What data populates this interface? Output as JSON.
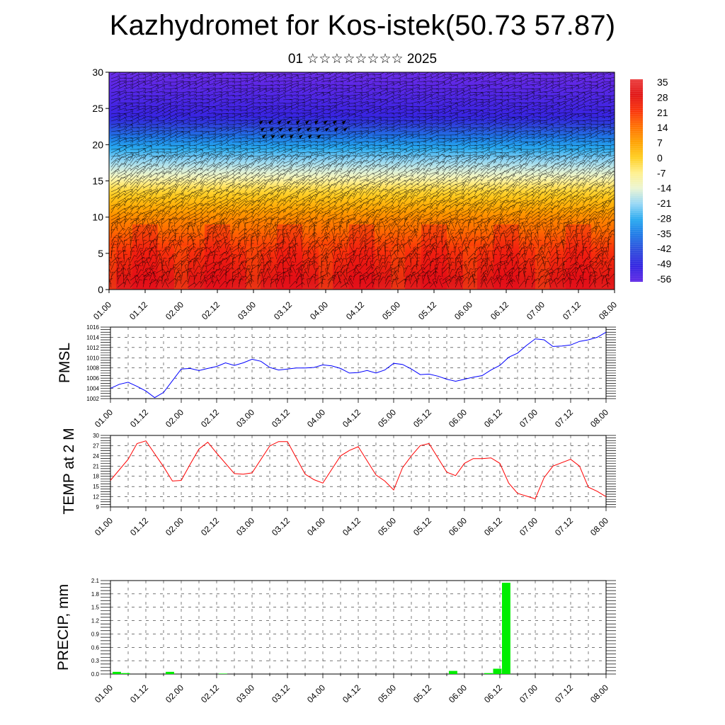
{
  "title": "Kazhydromet for Kos-istek(50.73 57.87)",
  "subtitle": "01 ☆☆☆☆☆☆☆☆ 2025",
  "time_labels": [
    "01.00",
    "01.12",
    "02.00",
    "02.12",
    "03.00",
    "03.12",
    "04.00",
    "04.12",
    "05.00",
    "05.12",
    "06.00",
    "06.12",
    "07.00",
    "07.12",
    "08.00"
  ],
  "chart_data": [
    {
      "id": "upper-air",
      "type": "heatmap",
      "title": "Kazhydromet for Kos-istek(50.73 57.87)",
      "subtitle": "01 ☆☆☆☆☆☆☆☆ 2025",
      "ylim": [
        0,
        30
      ],
      "y_ticks": [
        0,
        5,
        10,
        15,
        20,
        25,
        30
      ],
      "x_ticks": [
        "01.00",
        "01.12",
        "02.00",
        "02.12",
        "03.00",
        "03.12",
        "04.00",
        "04.12",
        "05.00",
        "05.12",
        "06.00",
        "06.12",
        "07.00",
        "07.12",
        "08.00"
      ],
      "temperature_profile": {
        "levels": [
          0,
          5,
          10,
          14,
          16,
          20,
          24,
          30
        ],
        "values": [
          30,
          22,
          10,
          -3,
          -14,
          -30,
          -50,
          -58
        ]
      },
      "colorbar": {
        "labels": [
          "35",
          "28",
          "21",
          "14",
          "7",
          "0",
          "-7",
          "-14",
          "-21",
          "-28",
          "-35",
          "-42",
          "-49",
          "-56"
        ],
        "colors": [
          "#f4a6a6",
          "#e11d2a",
          "#ff3d00",
          "#ff6a00",
          "#ff9c00",
          "#ffc400",
          "#ffe55a",
          "#fff3b0",
          "#bfe7f7",
          "#38b6f2",
          "#1f7fe8",
          "#2b43dd",
          "#2f1fe0",
          "#8a35e6"
        ]
      },
      "wind_barbs": "dense"
    },
    {
      "id": "pmsl",
      "type": "line",
      "ylabel": "PMSL",
      "ylim": [
        1002,
        1016
      ],
      "y_ticks": [
        "1002",
        "1004",
        "1006",
        "1008",
        "1010",
        "1012",
        "1014",
        "1016"
      ],
      "x_ticks": [
        "01.00",
        "01.12",
        "02.00",
        "02.12",
        "03.00",
        "03.12",
        "04.00",
        "04.12",
        "05.00",
        "05.12",
        "06.00",
        "06.12",
        "07.00",
        "07.12",
        "08.00"
      ],
      "x": [
        0,
        3,
        6,
        9,
        12,
        15,
        18,
        21,
        24,
        27,
        30,
        33,
        36,
        39,
        42,
        45,
        48,
        51,
        54,
        57,
        60,
        63,
        66,
        69,
        72,
        75,
        78,
        81,
        84,
        87,
        90,
        93,
        96,
        99,
        102,
        105,
        108,
        111,
        114,
        117,
        120,
        123,
        126,
        129,
        132,
        135,
        138,
        141,
        144,
        147,
        150,
        153,
        156,
        159,
        162,
        165,
        168
      ],
      "series": [
        {
          "color": "#0000ff",
          "values": [
            1004.0,
            1004.8,
            1005.2,
            1004.4,
            1003.5,
            1002.2,
            1003.2,
            1005.5,
            1007.8,
            1007.9,
            1007.5,
            1007.9,
            1008.3,
            1009.0,
            1008.5,
            1009.0,
            1009.7,
            1009.3,
            1008.1,
            1007.6,
            1007.8,
            1008.0,
            1008.0,
            1008.1,
            1008.6,
            1008.4,
            1007.9,
            1007.0,
            1007.1,
            1007.5,
            1007.0,
            1007.6,
            1008.9,
            1008.7,
            1007.8,
            1006.7,
            1006.8,
            1006.4,
            1005.8,
            1005.4,
            1005.8,
            1006.2,
            1006.5,
            1007.6,
            1008.5,
            1010.1,
            1010.9,
            1012.4,
            1013.7,
            1013.5,
            1012.2,
            1012.3,
            1012.5,
            1013.2,
            1013.5,
            1014.0,
            1015.0
          ]
        }
      ]
    },
    {
      "id": "temp2m",
      "type": "line",
      "ylabel": "TEMP at 2 M",
      "ylim": [
        9,
        30
      ],
      "y_ticks": [
        "9",
        "12",
        "15",
        "18",
        "21",
        "24",
        "27",
        "30"
      ],
      "x_ticks": [
        "01.00",
        "01.12",
        "02.00",
        "02.12",
        "03.00",
        "03.12",
        "04.00",
        "04.12",
        "05.00",
        "05.12",
        "06.00",
        "06.12",
        "07.00",
        "07.12",
        "08.00"
      ],
      "x": [
        0,
        6,
        9,
        12,
        18,
        21,
        24,
        27,
        30,
        33,
        36,
        42,
        45,
        48,
        54,
        57,
        60,
        66,
        69,
        72,
        78,
        81,
        84,
        90,
        93,
        96,
        99,
        102,
        105,
        108,
        114,
        117,
        120,
        123,
        126,
        129,
        132,
        135,
        138,
        144,
        147,
        150,
        156,
        159,
        162,
        165,
        168
      ],
      "series": [
        {
          "color": "#ff0000",
          "values": [
            16.8,
            23.0,
            27.6,
            28.4,
            20.8,
            16.6,
            16.8,
            21.5,
            26.0,
            28.0,
            24.8,
            18.8,
            18.6,
            19.0,
            26.9,
            28.2,
            28.2,
            18.6,
            17.0,
            16.0,
            24.0,
            25.6,
            26.7,
            18.4,
            16.6,
            14.0,
            20.5,
            24.0,
            27.0,
            27.6,
            19.2,
            18.2,
            21.8,
            23.2,
            23.2,
            23.4,
            21.8,
            16.0,
            13.0,
            11.4,
            17.6,
            21.0,
            23.0,
            21.0,
            14.8,
            13.6,
            12.0
          ]
        }
      ]
    },
    {
      "id": "precip",
      "type": "bar",
      "ylabel": "PRECIP, mm",
      "ylim": [
        0,
        2.1
      ],
      "y_ticks": [
        "0.0",
        "0.3",
        "0.6",
        "0.9",
        "1.2",
        "1.5",
        "1.8",
        "2.1"
      ],
      "x_ticks": [
        "01.00",
        "01.12",
        "02.00",
        "02.12",
        "03.00",
        "03.12",
        "04.00",
        "04.12",
        "05.00",
        "05.12",
        "06.00",
        "06.12",
        "07.00",
        "07.12",
        "08.00"
      ],
      "bar_width_hours": 3,
      "x": [
        0,
        3,
        18,
        36,
        114,
        126,
        129,
        132
      ],
      "series": [
        {
          "color": "#00ee00",
          "values": [
            0.05,
            0.02,
            0.05,
            0.01,
            0.07,
            0.02,
            0.12,
            2.05
          ]
        }
      ]
    }
  ]
}
